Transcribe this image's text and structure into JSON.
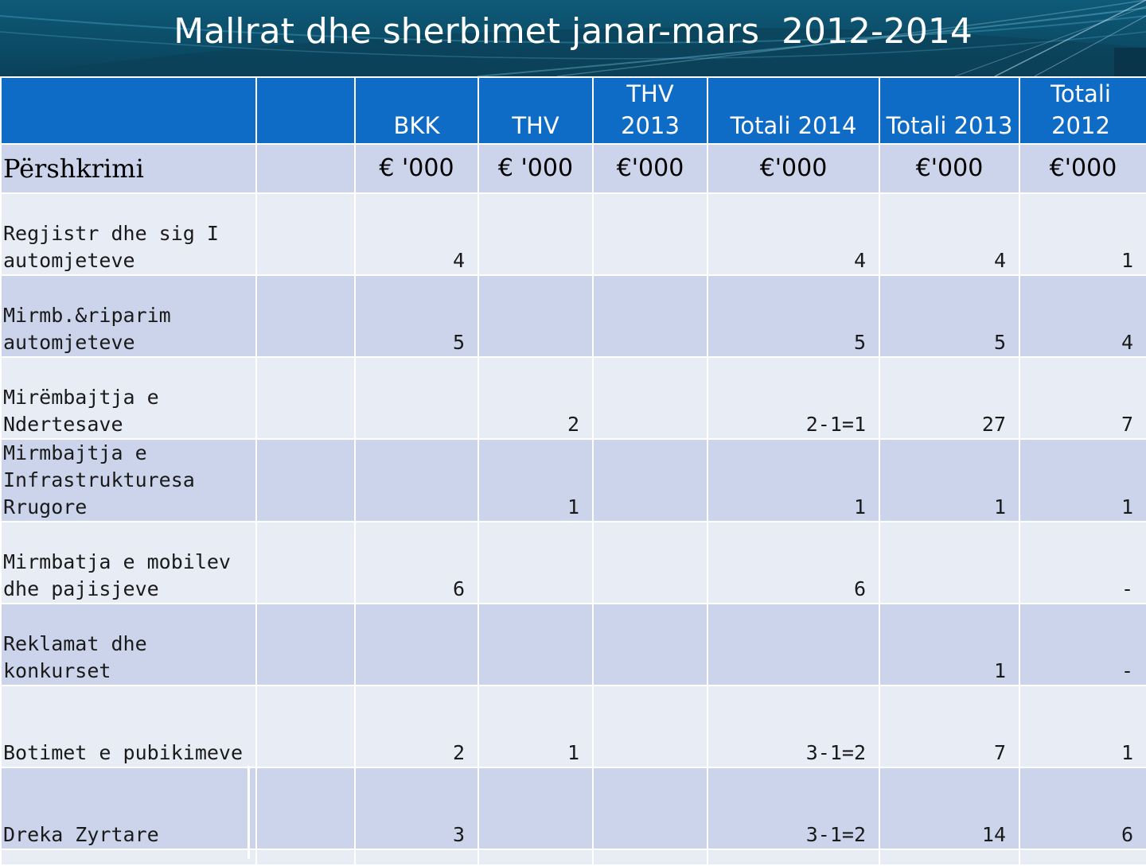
{
  "title": "Mallrat dhe sherbimet janar-mars  2012-2014",
  "header": [
    "",
    "",
    "BKK",
    "THV",
    "THV 2013",
    "Totali 2014",
    "Totali 2013",
    "Totali 2012"
  ],
  "units": {
    "description": "Përshkrimi",
    "cols": [
      "",
      "€ '000",
      "€ '000",
      "€'000",
      "€'000",
      "€'000",
      "€'000"
    ]
  },
  "rows": [
    {
      "description": "Regjistr dhe sig I automjeteve",
      "bkk": "4",
      "thv": "",
      "thv2013": "",
      "tot2014": "4",
      "tot2013": "4",
      "tot2012": "1"
    },
    {
      "description": "Mirmb.&riparim automjeteve",
      "bkk": "5",
      "thv": "",
      "thv2013": "",
      "tot2014": "5",
      "tot2013": "5",
      "tot2012": "4"
    },
    {
      "description": "Mirëmbajtja e Ndertesave",
      "bkk": "",
      "thv": "2",
      "thv2013": "",
      "tot2014": "2-1=1",
      "tot2013": "27",
      "tot2012": "7"
    },
    {
      "description": "Mirmbajtja e Infrastrukturesa Rrugore",
      "bkk": "",
      "thv": "1",
      "thv2013": "",
      "tot2014": "1",
      "tot2013": "1",
      "tot2012": "1"
    },
    {
      "description": "Mirmbatja e mobilev dhe pajisjeve",
      "bkk": "6",
      "thv": "",
      "thv2013": "",
      "tot2014": "6",
      "tot2013": "",
      "tot2012": "-"
    },
    {
      "description": "Reklamat dhe konkurset",
      "bkk": "",
      "thv": "",
      "thv2013": "",
      "tot2014": "",
      "tot2013": "1",
      "tot2012": "-"
    },
    {
      "description": "Botimet e pubikimeve",
      "bkk": "2",
      "thv": "1",
      "thv2013": "",
      "tot2014": "3-1=2",
      "tot2013": "7",
      "tot2012": "1"
    },
    {
      "description": "Dreka Zyrtare",
      "bkk": "3",
      "thv": "",
      "thv2013": "",
      "tot2014": "3-1=2",
      "tot2013": "14",
      "tot2012": "6"
    }
  ]
}
